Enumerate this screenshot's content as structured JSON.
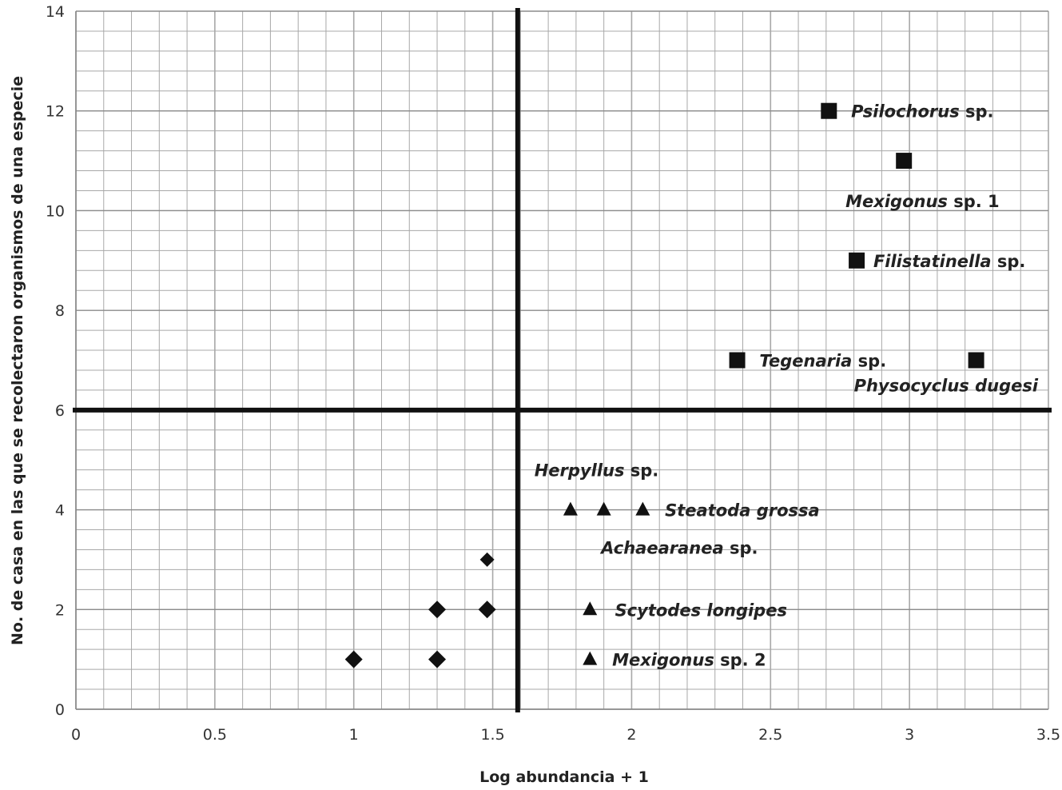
{
  "chart_data": {
    "type": "scatter",
    "xlabel": "Log abundancia  + 1",
    "ylabel": "No. de casa  en las  que se recolectaron organismos de una especie",
    "xlim": [
      0,
      3.5
    ],
    "ylim": [
      0,
      14
    ],
    "x_ticks": [
      "0",
      "0.5",
      "1",
      "1.5",
      "2",
      "2.5",
      "3",
      "3.5"
    ],
    "y_ticks": [
      "0",
      "2",
      "4",
      "6",
      "8",
      "10",
      "12",
      "14"
    ],
    "grid": true,
    "minor_grid": {
      "x_step": 0.1,
      "y_step": 0.4
    },
    "reference_lines": {
      "x": 1.59,
      "y": 6
    },
    "colors": {
      "marker": "#111111",
      "grid": "#a8a8a8",
      "reference": "#111111"
    },
    "series": [
      {
        "marker": "square",
        "points": [
          {
            "x": 2.71,
            "y": 12
          },
          {
            "x": 2.98,
            "y": 11
          },
          {
            "x": 2.81,
            "y": 9
          },
          {
            "x": 2.38,
            "y": 7
          },
          {
            "x": 3.24,
            "y": 7
          }
        ]
      },
      {
        "marker": "triangle",
        "points": [
          {
            "x": 1.78,
            "y": 4
          },
          {
            "x": 1.9,
            "y": 4
          },
          {
            "x": 2.04,
            "y": 4
          },
          {
            "x": 1.85,
            "y": 2
          },
          {
            "x": 1.85,
            "y": 1
          }
        ]
      },
      {
        "marker": "diamond",
        "points": [
          {
            "x": 1.48,
            "y": 3
          },
          {
            "x": 1.3,
            "y": 2
          },
          {
            "x": 1.48,
            "y": 2
          },
          {
            "x": 1.0,
            "y": 1
          },
          {
            "x": 1.3,
            "y": 1
          }
        ]
      }
    ],
    "annotations": [
      {
        "genus": "Psilochorus",
        "suffix": " sp.",
        "x": 2.79,
        "y": 12
      },
      {
        "genus": "Mexigonus",
        "suffix": " sp. 1",
        "x": 2.77,
        "y": 10.2
      },
      {
        "genus": "Filistatinella",
        "suffix": " sp.",
        "x": 2.87,
        "y": 9
      },
      {
        "genus": "Tegenaria",
        "suffix": " sp.",
        "x": 2.46,
        "y": 7
      },
      {
        "genus": "Physocyclus dugesi",
        "suffix": "",
        "x": 2.8,
        "y": 6.5
      },
      {
        "genus": "Herpyllus",
        "suffix": " sp.",
        "x": 1.65,
        "y": 4.8
      },
      {
        "genus": "Steatoda grossa",
        "suffix": "",
        "x": 2.12,
        "y": 4
      },
      {
        "genus": "Achaearanea",
        "suffix": " sp.",
        "x": 1.89,
        "y": 3.25
      },
      {
        "genus": "Scytodes longipes",
        "suffix": "",
        "x": 1.94,
        "y": 2
      },
      {
        "genus": "Mexigonus",
        "suffix": " sp. 2",
        "x": 1.93,
        "y": 1
      }
    ]
  }
}
